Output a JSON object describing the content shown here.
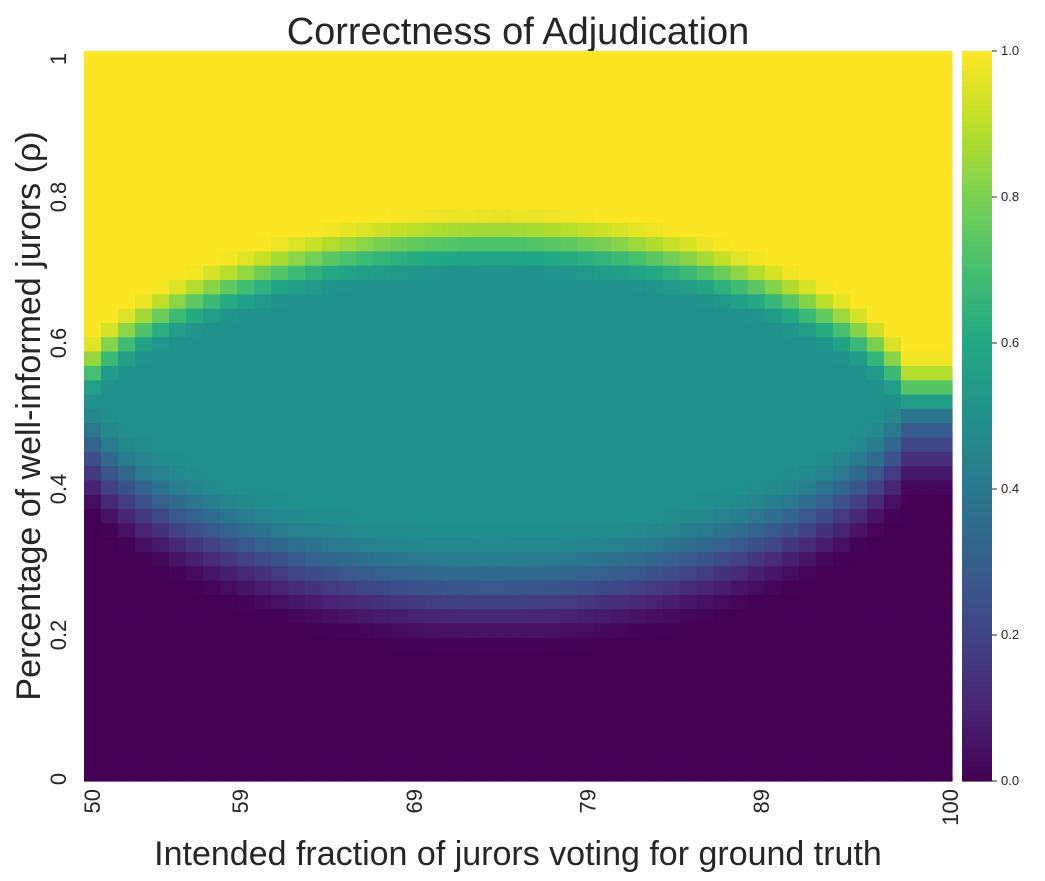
{
  "chart_data": {
    "type": "heatmap",
    "title": "Correctness of Adjudication",
    "xlabel": "Intended fraction of jurors voting for ground truth",
    "ylabel": "Percentage of well-informed jurors (ρ)",
    "x_range": [
      50,
      100
    ],
    "y_range": [
      0,
      1
    ],
    "x_ticks": [
      "50",
      "59",
      "69",
      "79",
      "89",
      "100"
    ],
    "y_ticks": [
      "0",
      "0.2",
      "0.4",
      "0.6",
      "0.8",
      "1"
    ],
    "colorbar": {
      "range": [
        0.0,
        1.0
      ],
      "ticks": [
        "0.0",
        "0.2",
        "0.4",
        "0.6",
        "0.8",
        "1.0"
      ],
      "colormap": "viridis"
    },
    "grid": {
      "x_cells": 51,
      "y_cells": 51
    },
    "surface_description": [
      {
        "region": "rho above ~0.75 everywhere, and rho above ~0.6 near x=50 and x=100",
        "value": 1.0
      },
      {
        "region": "central band rho 0.3-0.7 for x between ~60 and ~92",
        "value": 0.5
      },
      {
        "region": "rho below ~0.3 (below ~0.5 near x=50 and x=100)",
        "value": 0.0
      }
    ]
  }
}
